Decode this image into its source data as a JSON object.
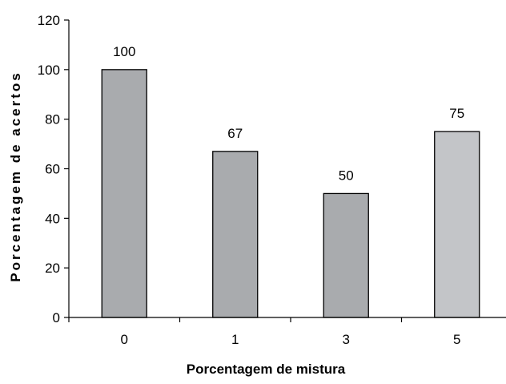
{
  "chart_data": {
    "type": "bar",
    "categories": [
      "0",
      "1",
      "3",
      "5"
    ],
    "values": [
      100,
      67,
      50,
      75
    ],
    "data_labels": [
      "100",
      "67",
      "50",
      "75"
    ],
    "title": "",
    "xlabel": "Porcentagem de mistura",
    "ylabel": "Porcentagem de acertos",
    "ylim": [
      0,
      120
    ],
    "yticks": [
      0,
      20,
      40,
      60,
      80,
      100,
      120
    ],
    "ytick_labels": [
      "0",
      "20",
      "40",
      "60",
      "80",
      "100",
      "120"
    ],
    "grid": false,
    "legend": "none",
    "bar_colors": [
      "#a9abae",
      "#a9abae",
      "#a9abae",
      "#c3c5c8"
    ],
    "bar_outline_color": "#000000"
  }
}
